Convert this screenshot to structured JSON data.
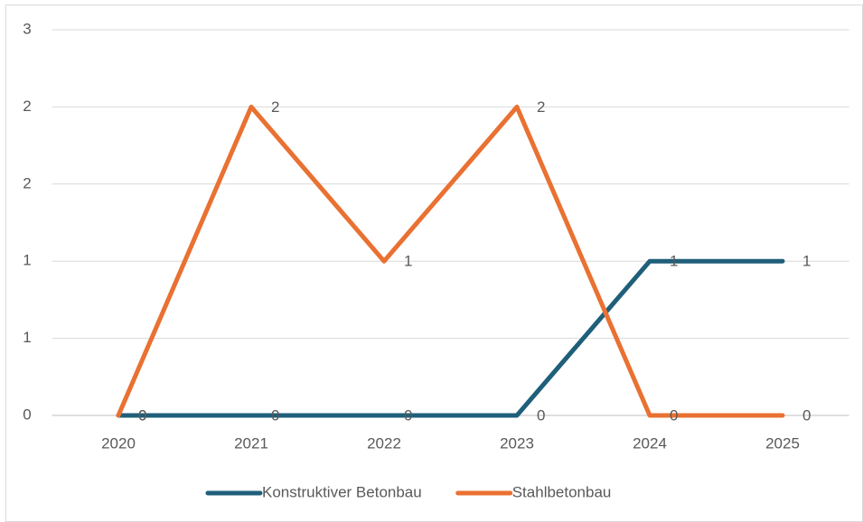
{
  "chart_data": {
    "type": "line",
    "categories": [
      "2020",
      "2021",
      "2022",
      "2023",
      "2024",
      "2025"
    ],
    "series": [
      {
        "name": "Konstruktiver Betonbau",
        "color": "#1f5f7a",
        "values": [
          0,
          0,
          0,
          0,
          1,
          1
        ]
      },
      {
        "name": "Stahlbetonbau",
        "color": "#e97132",
        "values": [
          0,
          2,
          1,
          2,
          0,
          0
        ]
      }
    ],
    "ylim": [
      0,
      2.5
    ],
    "yticks": [
      0,
      {
        "value": 0.5,
        "label": "1"
      },
      1,
      {
        "value": 1.5,
        "label": "2"
      },
      2,
      {
        "value": 2.5,
        "label": "3"
      }
    ],
    "grid": true,
    "legend": "bottom"
  }
}
